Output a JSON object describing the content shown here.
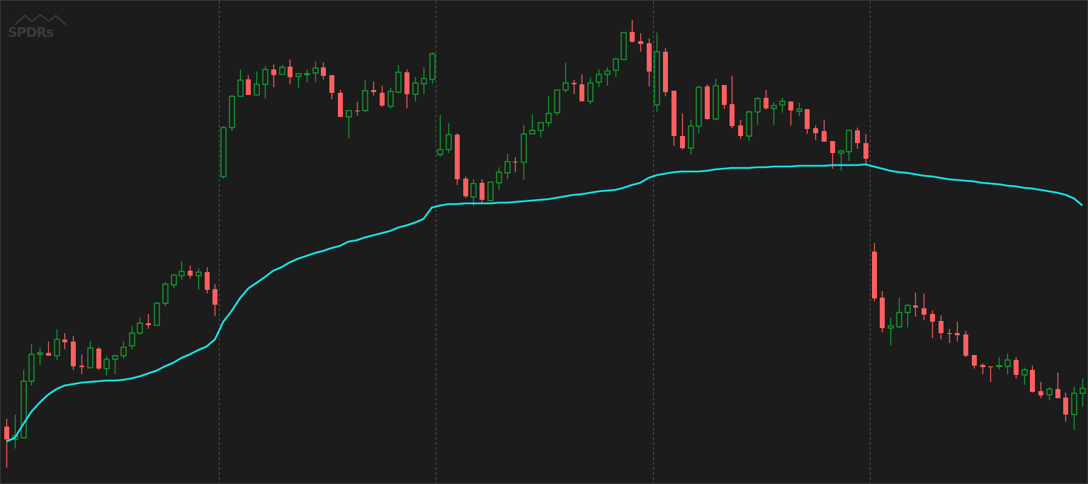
{
  "logo": {
    "text": "SPDRs"
  },
  "chart_data": {
    "type": "candlestick",
    "title": "",
    "xlabel": "",
    "ylabel": "",
    "axes_visible": false,
    "grid": false,
    "ylim": [
      0,
      68.3
    ],
    "session_breaks_after": [
      26,
      52,
      78,
      104
    ],
    "colors": {
      "background": "#1c1c1c",
      "up": "#14a532",
      "down": "#ff5f5f",
      "moving_average": "#19e6e6",
      "divider": "#555555"
    },
    "candles_ohlc": [
      [
        8.2,
        9.3,
        2.4,
        6.4
      ],
      [
        6.4,
        9.9,
        5.1,
        6.9
      ],
      [
        6.6,
        16.2,
        6.6,
        14.6
      ],
      [
        14.6,
        19.8,
        14.0,
        18.4
      ],
      [
        18.4,
        19.4,
        16.9,
        18.6
      ],
      [
        18.6,
        20.2,
        18.2,
        18.2
      ],
      [
        18.2,
        21.9,
        17.6,
        20.5
      ],
      [
        20.5,
        21.4,
        19.1,
        20.1
      ],
      [
        20.2,
        21.0,
        16.2,
        16.7
      ],
      [
        16.8,
        18.4,
        15.6,
        16.6
      ],
      [
        16.5,
        20.3,
        16.5,
        19.3
      ],
      [
        19.2,
        19.4,
        16.2,
        16.4
      ],
      [
        16.4,
        18.2,
        15.4,
        17.7
      ],
      [
        17.7,
        18.3,
        15.6,
        18.2
      ],
      [
        18.2,
        20.2,
        17.8,
        19.4
      ],
      [
        19.6,
        22.4,
        19.1,
        21.4
      ],
      [
        21.4,
        23.6,
        21.2,
        22.8
      ],
      [
        22.8,
        24.1,
        22.0,
        22.5
      ],
      [
        22.5,
        25.8,
        22.5,
        25.6
      ],
      [
        25.6,
        28.6,
        25.2,
        28.3
      ],
      [
        28.2,
        29.7,
        27.7,
        29.6
      ],
      [
        29.5,
        31.5,
        28.9,
        30.1
      ],
      [
        30.2,
        30.9,
        29.1,
        29.5
      ],
      [
        29.5,
        30.5,
        27.5,
        30.0
      ],
      [
        30.0,
        30.7,
        27.0,
        27.5
      ],
      [
        27.6,
        28.3,
        23.8,
        25.4
      ],
      [
        43.5,
        50.6,
        43.2,
        50.4
      ],
      [
        50.4,
        55.0,
        49.9,
        54.8
      ],
      [
        54.8,
        58.6,
        54.8,
        57.1
      ],
      [
        57.2,
        57.8,
        55.0,
        55.0
      ],
      [
        55.0,
        58.3,
        55.0,
        56.5
      ],
      [
        56.5,
        59.1,
        54.5,
        58.6
      ],
      [
        58.6,
        59.3,
        56.1,
        57.8
      ],
      [
        57.9,
        59.2,
        57.9,
        58.9
      ],
      [
        59.0,
        60.0,
        56.5,
        57.5
      ],
      [
        57.6,
        58.0,
        56.0,
        58.0
      ],
      [
        57.9,
        58.6,
        56.8,
        58.0
      ],
      [
        58.1,
        59.7,
        56.8,
        58.8
      ],
      [
        58.9,
        59.6,
        57.2,
        57.7
      ],
      [
        57.8,
        57.8,
        54.4,
        55.3
      ],
      [
        55.3,
        55.7,
        51.9,
        51.9
      ],
      [
        51.9,
        52.8,
        48.9,
        52.8
      ],
      [
        52.8,
        54.0,
        52.1,
        52.7
      ],
      [
        52.8,
        57.1,
        52.6,
        55.6
      ],
      [
        55.7,
        56.9,
        54.9,
        55.4
      ],
      [
        55.3,
        56.3,
        53.3,
        53.5
      ],
      [
        53.4,
        56.0,
        53.1,
        55.5
      ],
      [
        55.4,
        59.2,
        55.3,
        58.2
      ],
      [
        58.2,
        58.6,
        53.1,
        55.1
      ],
      [
        55.1,
        57.5,
        54.1,
        56.7
      ],
      [
        56.6,
        58.9,
        55.1,
        57.3
      ],
      [
        57.2,
        61.0,
        56.6,
        60.8
      ],
      [
        46.6,
        52.2,
        46.3,
        47.3
      ],
      [
        47.3,
        51.0,
        46.8,
        49.4
      ],
      [
        49.4,
        49.6,
        42.3,
        43.1
      ],
      [
        43.2,
        43.5,
        40.5,
        40.7
      ],
      [
        40.6,
        43.1,
        39.3,
        42.5
      ],
      [
        42.6,
        43.1,
        39.6,
        40.2
      ],
      [
        40.1,
        42.7,
        40.0,
        42.7
      ],
      [
        42.6,
        44.8,
        41.6,
        44.1
      ],
      [
        44.0,
        46.7,
        43.1,
        45.6
      ],
      [
        45.6,
        46.2,
        44.1,
        45.5
      ],
      [
        45.5,
        50.8,
        43.0,
        49.5
      ],
      [
        49.5,
        52.2,
        49.5,
        50.0
      ],
      [
        50.0,
        51.1,
        49.0,
        51.1
      ],
      [
        51.1,
        54.8,
        50.5,
        52.4
      ],
      [
        52.5,
        55.7,
        52.1,
        55.7
      ],
      [
        55.7,
        59.5,
        55.4,
        56.7
      ],
      [
        56.7,
        57.1,
        55.1,
        56.5
      ],
      [
        56.5,
        57.9,
        54.1,
        54.1
      ],
      [
        54.1,
        57.4,
        53.7,
        56.7
      ],
      [
        56.8,
        58.6,
        56.1,
        57.9
      ],
      [
        57.9,
        58.9,
        56.3,
        58.4
      ],
      [
        58.5,
        60.2,
        57.5,
        60.1
      ],
      [
        60.0,
        63.8,
        60.0,
        63.8
      ],
      [
        63.9,
        65.6,
        62.4,
        62.5
      ],
      [
        62.6,
        63.7,
        61.1,
        62.2
      ],
      [
        62.3,
        63.0,
        56.2,
        58.3
      ],
      [
        53.6,
        63.8,
        52.6,
        61.1
      ],
      [
        61.1,
        61.6,
        54.8,
        55.4
      ],
      [
        55.6,
        55.6,
        47.8,
        49.2
      ],
      [
        49.2,
        52.4,
        47.3,
        47.5
      ],
      [
        47.5,
        51.5,
        46.6,
        50.6
      ],
      [
        50.6,
        56.3,
        49.6,
        56.1
      ],
      [
        56.2,
        56.5,
        51.5,
        51.6
      ],
      [
        51.6,
        57.3,
        51.4,
        56.3
      ],
      [
        56.4,
        56.4,
        53.0,
        53.6
      ],
      [
        53.7,
        57.7,
        50.3,
        50.6
      ],
      [
        50.7,
        51.5,
        48.8,
        49.2
      ],
      [
        49.2,
        52.8,
        48.5,
        52.6
      ],
      [
        52.6,
        54.7,
        50.8,
        54.5
      ],
      [
        54.6,
        55.7,
        52.9,
        53.1
      ],
      [
        53.1,
        54.0,
        50.8,
        53.5
      ],
      [
        53.6,
        54.6,
        52.5,
        54.1
      ],
      [
        54.1,
        54.1,
        50.7,
        52.8
      ],
      [
        52.7,
        53.9,
        52.0,
        53.0
      ],
      [
        53.0,
        53.0,
        49.5,
        50.2
      ],
      [
        50.3,
        50.7,
        48.6,
        49.6
      ],
      [
        49.9,
        51.5,
        48.4,
        48.4
      ],
      [
        48.5,
        48.5,
        44.6,
        46.8
      ],
      [
        46.8,
        47.2,
        44.3,
        47.1
      ],
      [
        47.0,
        50.0,
        45.7,
        50.0
      ],
      [
        50.0,
        50.4,
        47.4,
        48.2
      ],
      [
        48.2,
        49.5,
        45.3,
        46.0
      ],
      [
        32.9,
        34.1,
        25.9,
        26.3
      ],
      [
        26.4,
        27.3,
        21.5,
        22.1
      ],
      [
        22.1,
        23.6,
        19.7,
        22.4
      ],
      [
        22.3,
        26.4,
        22.1,
        24.3
      ],
      [
        24.3,
        25.5,
        22.2,
        25.3
      ],
      [
        25.3,
        27.1,
        23.7,
        25.0
      ],
      [
        24.9,
        27.0,
        23.2,
        24.0
      ],
      [
        24.1,
        24.6,
        20.7,
        23.0
      ],
      [
        23.1,
        23.9,
        20.5,
        21.4
      ],
      [
        21.4,
        22.0,
        20.0,
        21.3
      ],
      [
        21.4,
        23.0,
        20.2,
        21.1
      ],
      [
        21.2,
        21.7,
        18.0,
        18.2
      ],
      [
        18.3,
        18.3,
        16.4,
        16.8
      ],
      [
        16.9,
        17.1,
        15.6,
        16.6
      ],
      [
        16.7,
        16.7,
        14.5,
        16.6
      ],
      [
        16.7,
        18.0,
        16.3,
        16.8
      ],
      [
        16.7,
        18.5,
        15.6,
        17.6
      ],
      [
        17.6,
        18.0,
        15.0,
        15.5
      ],
      [
        15.5,
        16.5,
        14.1,
        16.2
      ],
      [
        16.2,
        16.8,
        13.0,
        13.1
      ],
      [
        13.2,
        14.5,
        12.2,
        12.6
      ],
      [
        12.7,
        13.8,
        11.9,
        13.5
      ],
      [
        13.5,
        15.8,
        12.2,
        12.2
      ],
      [
        12.3,
        13.0,
        8.9,
        9.9
      ],
      [
        9.9,
        13.8,
        7.7,
        12.9
      ],
      [
        12.9,
        15.0,
        11.0,
        13.6
      ]
    ],
    "moving_average": [
      6.1,
      6.6,
      8.5,
      10.3,
      11.6,
      12.7,
      13.5,
      14.0,
      14.2,
      14.4,
      14.5,
      14.6,
      14.7,
      14.7,
      14.8,
      15.0,
      15.3,
      15.7,
      16.1,
      16.7,
      17.2,
      17.9,
      18.4,
      19.0,
      19.5,
      20.5,
      23.0,
      24.5,
      26.3,
      27.7,
      28.5,
      29.3,
      30.2,
      30.7,
      31.4,
      31.9,
      32.3,
      32.7,
      33.0,
      33.4,
      33.7,
      34.3,
      34.5,
      34.9,
      35.2,
      35.5,
      35.8,
      36.3,
      36.6,
      37.0,
      37.5,
      39.1,
      39.4,
      39.6,
      39.6,
      39.7,
      39.7,
      39.7,
      39.7,
      39.8,
      39.8,
      39.9,
      40.0,
      40.1,
      40.2,
      40.3,
      40.5,
      40.7,
      40.9,
      41.0,
      41.2,
      41.4,
      41.5,
      41.6,
      41.9,
      42.3,
      42.6,
      43.3,
      43.7,
      43.9,
      44.1,
      44.2,
      44.2,
      44.2,
      44.3,
      44.5,
      44.6,
      44.7,
      44.7,
      44.7,
      44.8,
      44.8,
      44.9,
      44.9,
      44.9,
      45.0,
      45.0,
      45.0,
      45.0,
      45.1,
      45.1,
      45.1,
      45.1,
      45.2,
      44.9,
      44.6,
      44.3,
      44.1,
      44.0,
      43.8,
      43.6,
      43.5,
      43.3,
      43.1,
      43.0,
      42.9,
      42.8,
      42.6,
      42.5,
      42.4,
      42.2,
      42.1,
      41.9,
      41.8,
      41.6,
      41.4,
      41.2,
      40.9,
      40.4,
      39.4
    ]
  }
}
